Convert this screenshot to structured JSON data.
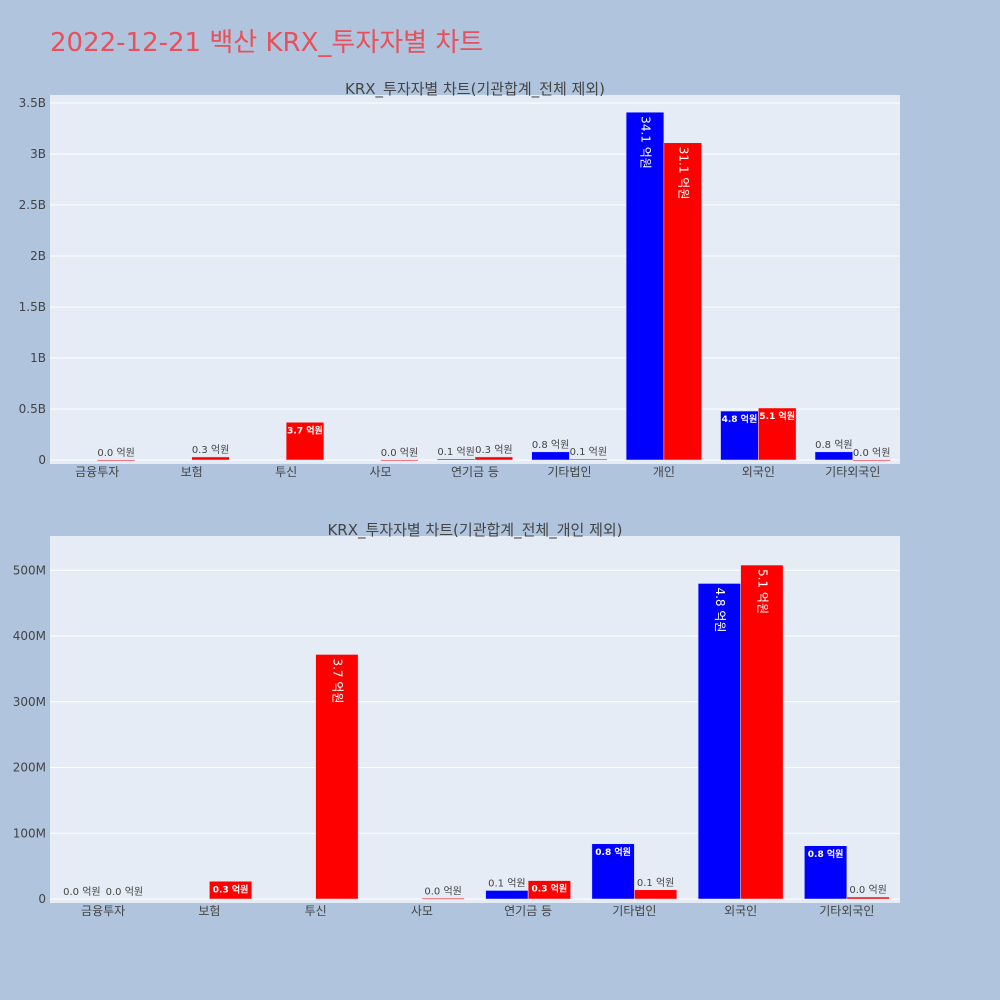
{
  "title": "2022-12-21 백산 KRX_투자자별 차트",
  "colors": {
    "background": "#b0c4de",
    "plot_bg": "#e5ecf6",
    "title": "#e8505b",
    "series_a": "#0000ff",
    "series_b": "#ff0000"
  },
  "chart_data": [
    {
      "type": "bar",
      "title": "KRX_투자자별 차트(기관합계_전체 제외)",
      "categories": [
        "금융투자",
        "보험",
        "투신",
        "사모",
        "연기금 등",
        "기타법인",
        "개인",
        "외국인",
        "기타외국인"
      ],
      "ylim": [
        0,
        3500000000
      ],
      "yticks": [
        0,
        500000000,
        1000000000,
        1500000000,
        2000000000,
        2500000000,
        3000000000,
        3500000000
      ],
      "ytick_labels": [
        "0",
        "0.5B",
        "1B",
        "1.5B",
        "2B",
        "2.5B",
        "3B",
        "3.5B"
      ],
      "grid": true,
      "series": [
        {
          "color": "#0000ff",
          "values": [
            0,
            0,
            0,
            0,
            10000000,
            80000000,
            3410000000,
            480000000,
            80000000
          ],
          "labels": [
            "",
            "",
            "",
            "",
            "0.1 억원",
            "0.8 억원",
            "34.1 억원",
            "4.8 억원",
            "0.8 억원"
          ]
        },
        {
          "color": "#ff0000",
          "values": [
            2000000,
            30000000,
            370000000,
            1000000,
            30000000,
            10000000,
            3110000000,
            510000000,
            2000000
          ],
          "labels": [
            "0.0 억원",
            "0.3 억원",
            "3.7 억원",
            "0.0 억원",
            "0.3 억원",
            "0.1 억원",
            "31.1 억원",
            "5.1 억원",
            "0.0 억원"
          ]
        }
      ]
    },
    {
      "type": "bar",
      "title": "KRX_투자자별 차트(기관합계_전체_개인 제외)",
      "categories": [
        "금융투자",
        "보험",
        "투신",
        "사모",
        "연기금 등",
        "기타법인",
        "외국인",
        "기타외국인"
      ],
      "ylim": [
        0,
        540000000
      ],
      "yticks": [
        0,
        100000000,
        200000000,
        300000000,
        400000000,
        500000000
      ],
      "ytick_labels": [
        "0",
        "100M",
        "200M",
        "300M",
        "400M",
        "500M"
      ],
      "grid": true,
      "series": [
        {
          "color": "#0000ff",
          "values": [
            0,
            0,
            0,
            0,
            13000000,
            84000000,
            480000000,
            81000000
          ],
          "labels": [
            "0.0 억원",
            "",
            "",
            "",
            "0.1 억원",
            "0.8 억원",
            "4.8 억원",
            "0.8 억원"
          ]
        },
        {
          "color": "#ff0000",
          "values": [
            0,
            27000000,
            372000000,
            1000000,
            28000000,
            14000000,
            508000000,
            3000000
          ],
          "labels": [
            "0.0 억원",
            "0.3 억원",
            "3.7 억원",
            "0.0 억원",
            "0.3 억원",
            "0.1 억원",
            "5.1 억원",
            "0.0 억원"
          ]
        }
      ]
    }
  ]
}
